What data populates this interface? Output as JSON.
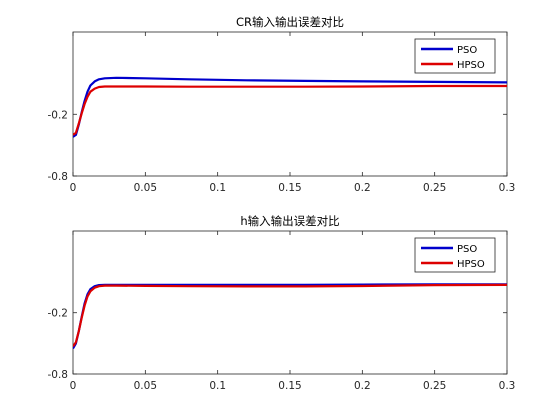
{
  "chart_data": [
    {
      "type": "line",
      "title": "CR输入输出误差对比",
      "xlabel": "",
      "ylabel": "",
      "xlim": [
        0,
        0.3
      ],
      "ylim": [
        -0.8,
        0.6
      ],
      "xticks": [
        0,
        0.05,
        0.1,
        0.15,
        0.2,
        0.25,
        0.3
      ],
      "xtick_labels": [
        "0",
        "0.05",
        "0.1",
        "0.15",
        "0.2",
        "0.25",
        "0.3"
      ],
      "yticks": [
        -0.8,
        -0.2
      ],
      "ytick_labels": [
        "-0.8",
        "-0.2"
      ],
      "grid": false,
      "legend_position": "top-right",
      "series": [
        {
          "name": "PSO",
          "color": "#0000cc",
          "x": [
            0,
            0.002,
            0.004,
            0.006,
            0.008,
            0.01,
            0.012,
            0.015,
            0.018,
            0.022,
            0.03,
            0.05,
            0.08,
            0.12,
            0.16,
            0.2,
            0.25,
            0.3
          ],
          "y": [
            -0.42,
            -0.4,
            -0.3,
            -0.18,
            -0.07,
            0.02,
            0.08,
            0.12,
            0.14,
            0.15,
            0.155,
            0.15,
            0.14,
            0.13,
            0.125,
            0.12,
            0.115,
            0.11
          ]
        },
        {
          "name": "HPSO",
          "color": "#dd0000",
          "x": [
            0,
            0.002,
            0.004,
            0.006,
            0.008,
            0.01,
            0.012,
            0.015,
            0.018,
            0.022,
            0.03,
            0.05,
            0.08,
            0.12,
            0.16,
            0.2,
            0.25,
            0.3
          ],
          "y": [
            -0.4,
            -0.38,
            -0.29,
            -0.19,
            -0.1,
            -0.03,
            0.02,
            0.05,
            0.065,
            0.07,
            0.07,
            0.07,
            0.068,
            0.068,
            0.068,
            0.07,
            0.075,
            0.075
          ]
        }
      ]
    },
    {
      "type": "line",
      "title": "h输入输出误差对比",
      "xlabel": "",
      "ylabel": "",
      "xlim": [
        0,
        0.3
      ],
      "ylim": [
        -0.8,
        0.6
      ],
      "xticks": [
        0,
        0.05,
        0.1,
        0.15,
        0.2,
        0.25,
        0.3
      ],
      "xtick_labels": [
        "0",
        "0.05",
        "0.1",
        "0.15",
        "0.2",
        "0.25",
        "0.3"
      ],
      "yticks": [
        -0.8,
        -0.2
      ],
      "ytick_labels": [
        "-0.8",
        "-0.2"
      ],
      "grid": false,
      "legend_position": "top-right",
      "series": [
        {
          "name": "PSO",
          "color": "#0000cc",
          "x": [
            0,
            0.002,
            0.004,
            0.006,
            0.008,
            0.01,
            0.012,
            0.015,
            0.018,
            0.022,
            0.03,
            0.05,
            0.08,
            0.12,
            0.16,
            0.2,
            0.25,
            0.3
          ],
          "y": [
            -0.55,
            -0.5,
            -0.38,
            -0.24,
            -0.11,
            -0.02,
            0.03,
            0.06,
            0.07,
            0.072,
            0.072,
            0.072,
            0.072,
            0.072,
            0.072,
            0.075,
            0.078,
            0.078
          ]
        },
        {
          "name": "HPSO",
          "color": "#dd0000",
          "x": [
            0,
            0.002,
            0.004,
            0.006,
            0.008,
            0.01,
            0.012,
            0.015,
            0.018,
            0.022,
            0.03,
            0.05,
            0.08,
            0.12,
            0.16,
            0.2,
            0.25,
            0.3
          ],
          "y": [
            -0.53,
            -0.49,
            -0.38,
            -0.25,
            -0.13,
            -0.04,
            0.01,
            0.045,
            0.06,
            0.065,
            0.065,
            0.063,
            0.06,
            0.058,
            0.058,
            0.062,
            0.07,
            0.072
          ]
        }
      ]
    }
  ]
}
